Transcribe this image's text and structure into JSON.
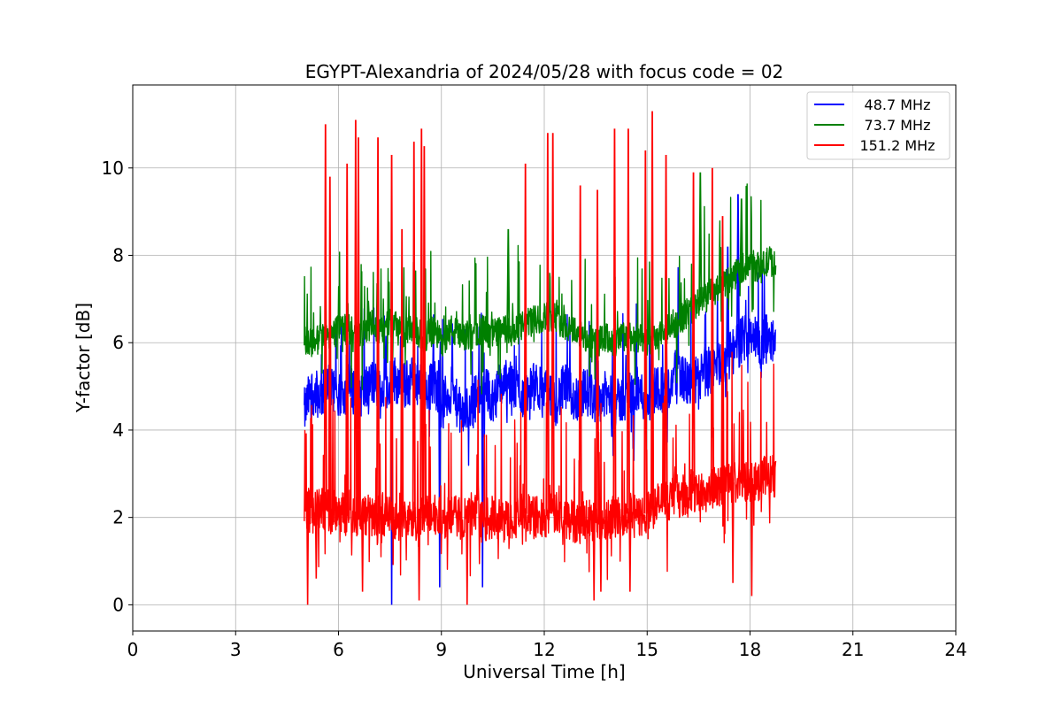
{
  "chart_data": {
    "type": "line",
    "title": "EGYPT-Alexandria of 2024/05/28 with focus code = 02",
    "xlabel": "Universal Time [h]",
    "ylabel": "Y-factor [dB]",
    "xlim": [
      0,
      24
    ],
    "ylim": [
      -0.6,
      11.9
    ],
    "xticks": [
      0,
      3,
      6,
      9,
      12,
      15,
      18,
      21,
      24
    ],
    "xtick_labels": [
      "0",
      "3",
      "6",
      "9",
      "12",
      "15",
      "18",
      "21",
      "24"
    ],
    "yticks": [
      0,
      2,
      4,
      6,
      8,
      10
    ],
    "ytick_labels": [
      "0",
      "2",
      "4",
      "6",
      "8",
      "10"
    ],
    "grid": true,
    "legend_position": "top-right",
    "series": [
      {
        "name": " 48.7 MHz",
        "color": "#0000ff",
        "x": [
          5.0,
          5.2,
          5.5,
          5.8,
          6.0,
          6.3,
          6.6,
          7.0,
          7.3,
          7.6,
          7.9,
          8.2,
          8.5,
          8.8,
          9.0,
          9.3,
          9.6,
          9.9,
          10.2,
          10.5,
          10.8,
          11.1,
          11.4,
          11.7,
          12.0,
          12.3,
          12.6,
          12.9,
          13.2,
          13.5,
          13.8,
          14.1,
          14.4,
          14.7,
          15.0,
          15.3,
          15.6,
          15.9,
          16.2,
          16.5,
          16.8,
          17.1,
          17.4,
          17.7,
          18.0,
          18.3,
          18.6,
          18.75
        ],
        "y": [
          4.4,
          4.9,
          4.8,
          5.0,
          4.7,
          5.0,
          4.8,
          5.1,
          4.9,
          5.2,
          5.0,
          5.2,
          4.9,
          5.1,
          4.6,
          4.9,
          4.3,
          4.6,
          5.0,
          4.7,
          5.1,
          5.0,
          4.8,
          5.0,
          4.9,
          4.6,
          5.0,
          4.7,
          4.9,
          4.7,
          4.8,
          4.6,
          4.8,
          4.9,
          4.7,
          5.0,
          4.9,
          5.4,
          5.0,
          5.2,
          5.3,
          5.5,
          5.7,
          6.0,
          6.3,
          5.9,
          6.2,
          5.8
        ]
      },
      {
        "name": " 73.7 MHz",
        "color": "#008000",
        "x": [
          5.0,
          5.2,
          5.5,
          5.8,
          6.0,
          6.3,
          6.6,
          7.0,
          7.3,
          7.6,
          7.9,
          8.2,
          8.5,
          8.8,
          9.0,
          9.3,
          9.6,
          9.9,
          10.2,
          10.5,
          10.8,
          11.1,
          11.4,
          11.7,
          12.0,
          12.3,
          12.6,
          12.9,
          13.2,
          13.5,
          13.8,
          14.1,
          14.4,
          14.7,
          15.0,
          15.3,
          15.6,
          15.9,
          16.2,
          16.5,
          16.8,
          17.1,
          17.4,
          17.7,
          18.0,
          18.3,
          18.6,
          18.75
        ],
        "y": [
          6.1,
          6.0,
          6.1,
          6.2,
          6.3,
          6.3,
          6.2,
          6.4,
          6.3,
          6.5,
          6.2,
          6.3,
          6.1,
          6.3,
          6.0,
          6.3,
          6.1,
          6.2,
          6.3,
          6.2,
          6.3,
          6.2,
          6.4,
          6.5,
          6.6,
          6.6,
          6.4,
          6.3,
          6.1,
          6.0,
          6.1,
          6.0,
          6.2,
          6.1,
          6.0,
          6.1,
          6.3,
          6.5,
          6.7,
          6.9,
          7.1,
          7.2,
          7.4,
          7.7,
          7.8,
          7.7,
          7.9,
          7.7
        ]
      },
      {
        "name": " 151.2 MHz",
        "color": "#ff0000",
        "x": [
          5.0,
          5.2,
          5.5,
          5.8,
          6.0,
          6.3,
          6.6,
          7.0,
          7.3,
          7.6,
          7.9,
          8.2,
          8.5,
          8.8,
          9.0,
          9.3,
          9.6,
          9.9,
          10.2,
          10.5,
          10.8,
          11.1,
          11.4,
          11.7,
          12.0,
          12.3,
          12.6,
          12.9,
          13.2,
          13.5,
          13.8,
          14.1,
          14.4,
          14.7,
          15.0,
          15.3,
          15.6,
          15.9,
          16.2,
          16.5,
          16.8,
          17.1,
          17.4,
          17.7,
          18.0,
          18.3,
          18.6,
          18.75
        ],
        "y": [
          2.3,
          2.1,
          2.2,
          2.1,
          2.2,
          2.0,
          2.1,
          2.0,
          2.1,
          1.9,
          2.0,
          1.9,
          2.0,
          2.1,
          1.9,
          2.0,
          2.0,
          2.1,
          1.9,
          2.0,
          1.9,
          2.0,
          2.1,
          2.0,
          2.0,
          2.1,
          2.0,
          1.9,
          2.0,
          1.9,
          2.0,
          2.0,
          2.1,
          2.0,
          2.1,
          2.3,
          2.4,
          2.5,
          2.5,
          2.6,
          2.6,
          2.7,
          2.8,
          2.8,
          2.9,
          2.9,
          3.0,
          2.8
        ]
      }
    ],
    "spikes": [
      {
        "series": 2,
        "x": 5.62,
        "y": 11.0
      },
      {
        "series": 2,
        "x": 5.75,
        "y": 9.8
      },
      {
        "series": 2,
        "x": 6.25,
        "y": 10.1
      },
      {
        "series": 2,
        "x": 6.5,
        "y": 11.1
      },
      {
        "series": 2,
        "x": 6.58,
        "y": 10.7
      },
      {
        "series": 2,
        "x": 7.15,
        "y": 10.7
      },
      {
        "series": 2,
        "x": 7.55,
        "y": 10.3
      },
      {
        "series": 2,
        "x": 7.85,
        "y": 8.6
      },
      {
        "series": 2,
        "x": 8.2,
        "y": 10.6
      },
      {
        "series": 2,
        "x": 8.42,
        "y": 10.9
      },
      {
        "series": 2,
        "x": 8.5,
        "y": 10.5
      },
      {
        "series": 2,
        "x": 11.45,
        "y": 10.1
      },
      {
        "series": 2,
        "x": 12.1,
        "y": 10.8
      },
      {
        "series": 2,
        "x": 12.25,
        "y": 10.8
      },
      {
        "series": 2,
        "x": 13.05,
        "y": 9.6
      },
      {
        "series": 2,
        "x": 13.55,
        "y": 9.5
      },
      {
        "series": 2,
        "x": 14.05,
        "y": 10.9
      },
      {
        "series": 2,
        "x": 14.45,
        "y": 10.9
      },
      {
        "series": 2,
        "x": 14.95,
        "y": 10.4
      },
      {
        "series": 2,
        "x": 15.15,
        "y": 11.3
      },
      {
        "series": 2,
        "x": 15.55,
        "y": 10.3
      },
      {
        "series": 2,
        "x": 16.35,
        "y": 9.9
      },
      {
        "series": 2,
        "x": 16.9,
        "y": 10.0
      },
      {
        "series": 2,
        "x": 17.2,
        "y": 8.9
      },
      {
        "series": 1,
        "x": 16.55,
        "y": 9.9
      },
      {
        "series": 1,
        "x": 17.75,
        "y": 9.3
      },
      {
        "series": 1,
        "x": 10.95,
        "y": 8.6
      },
      {
        "series": 0,
        "x": 17.65,
        "y": 9.4
      },
      {
        "series": 0,
        "x": 17.35,
        "y": 8.2
      }
    ],
    "dips": [
      {
        "series": 2,
        "x": 5.1,
        "y": 0.0
      },
      {
        "series": 2,
        "x": 5.35,
        "y": 0.6
      },
      {
        "series": 2,
        "x": 6.7,
        "y": 0.3
      },
      {
        "series": 2,
        "x": 8.35,
        "y": 0.1
      },
      {
        "series": 2,
        "x": 9.75,
        "y": 0.0
      },
      {
        "series": 2,
        "x": 13.45,
        "y": 0.1
      },
      {
        "series": 2,
        "x": 13.65,
        "y": 0.3
      },
      {
        "series": 2,
        "x": 14.5,
        "y": 0.3
      },
      {
        "series": 2,
        "x": 17.5,
        "y": 0.5
      },
      {
        "series": 2,
        "x": 18.05,
        "y": 0.2
      },
      {
        "series": 0,
        "x": 7.55,
        "y": 0.0
      },
      {
        "series": 0,
        "x": 8.95,
        "y": 0.4
      },
      {
        "series": 0,
        "x": 10.2,
        "y": 0.4
      }
    ]
  }
}
